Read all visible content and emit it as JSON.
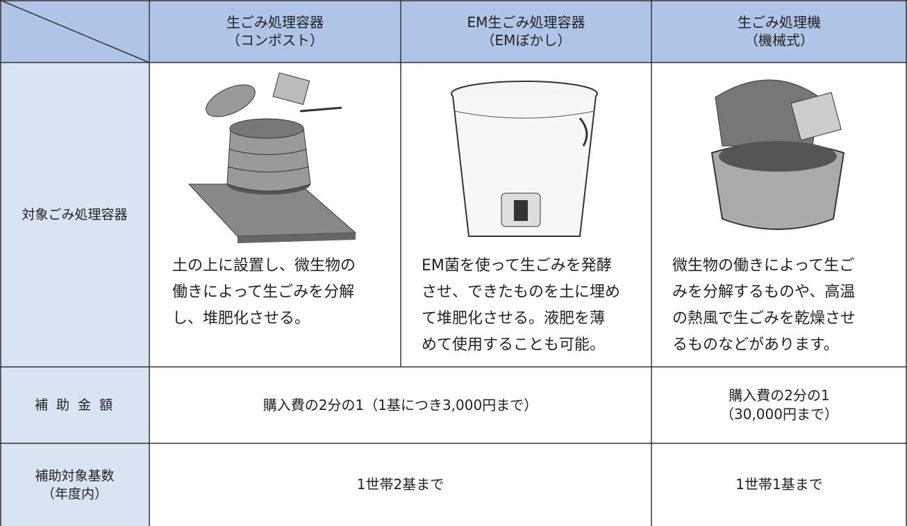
{
  "table": {
    "header": [
      [
        "生ごみ処理容器",
        "（コンポスト）"
      ],
      [
        "EM生ごみ処理容器",
        "（EMぼかし）"
      ],
      [
        "生ごみ処理機",
        "（機械式）"
      ]
    ],
    "rows": [
      {
        "label": [
          "対象ごみ処理容器"
        ],
        "cells": [
          [
            "土の上に設置し、微生物の",
            "働きによって生ごみを分解",
            "し、堆肥化させる。"
          ],
          [
            "EM菌を使って生ごみを発酵",
            "させ、できたものを土に埋め",
            "て堆肥化させる。液肥を薄",
            "めて使用することも可能。"
          ],
          [
            "微生物の働きによって生ご",
            "みを分解するものや、高温",
            "の熱風で生ごみを乾燥させ",
            "るものなどがあります。"
          ]
        ]
      },
      {
        "label": [
          "補 助 金 額"
        ],
        "cells": [
          [
            "購入費の2分の1（1基につき3,000円まで）"
          ],
          [
            "購入費の2分の1",
            "（30,000円まで）"
          ]
        ]
      },
      {
        "label": [
          "補助対象基数",
          "（年度内）"
        ],
        "cells": [
          [
            "1世帯2基まで"
          ],
          [
            "1世帯1基まで"
          ]
        ]
      }
    ]
  }
}
